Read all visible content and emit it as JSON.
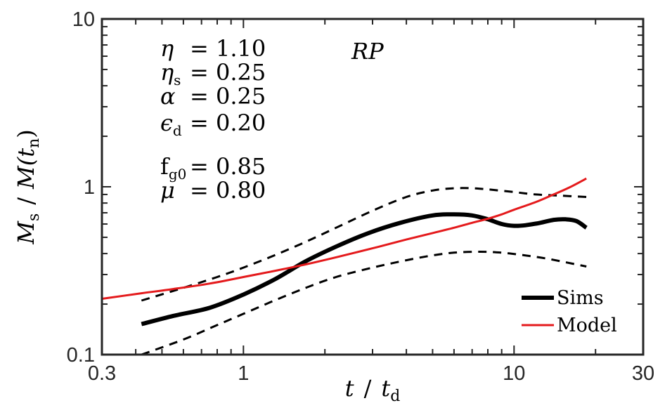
{
  "chart_data": {
    "type": "line",
    "title": "RP",
    "xscale": "log",
    "yscale": "log",
    "xlim": [
      0.3,
      30
    ],
    "ylim": [
      0.1,
      10
    ],
    "xticks": [
      0.3,
      1,
      10,
      30
    ],
    "xtick_labels": [
      "0.3",
      "1",
      "10",
      "30"
    ],
    "yticks": [
      0.1,
      1,
      10
    ],
    "ytick_labels": [
      "0.1",
      "1",
      "10"
    ],
    "xlabel": {
      "var1": "t",
      "slash": "/",
      "var2": "t",
      "sub2": "d"
    },
    "ylabel": {
      "var1": "M",
      "sub1": "s",
      "slash": "/",
      "var2": "M(t",
      "sub2": "n",
      "close": ")"
    },
    "annotations": [
      {
        "sym": "η",
        "sub": "",
        "eq": "= 1.10"
      },
      {
        "sym": "η",
        "sub": "s",
        "eq": "= 0.25"
      },
      {
        "sym": "α",
        "sub": "",
        "eq": "= 0.25"
      },
      {
        "sym": "ϵ",
        "sub": "d",
        "eq": "= 0.20"
      },
      {
        "sym": "f",
        "sub": "g0",
        "eq": "= 0.85"
      },
      {
        "sym": "μ",
        "sub": "",
        "eq": "= 0.80"
      }
    ],
    "legend": {
      "position": "bottom-right",
      "entries": [
        "Sims",
        "Model"
      ]
    },
    "series": [
      {
        "name": "Sims",
        "color": "#000000",
        "style": "solid",
        "x": [
          0.42,
          0.55,
          0.75,
          1.0,
          1.3,
          1.7,
          2.2,
          2.9,
          3.8,
          5.0,
          6.0,
          7.0,
          8.0,
          9.0,
          10.0,
          11.0,
          12.5,
          14.0,
          15.5,
          17.0,
          18.5
        ],
        "y": [
          0.152,
          0.17,
          0.19,
          0.228,
          0.28,
          0.36,
          0.44,
          0.53,
          0.61,
          0.675,
          0.685,
          0.675,
          0.64,
          0.6,
          0.585,
          0.59,
          0.61,
          0.635,
          0.64,
          0.625,
          0.57
        ]
      },
      {
        "name": "Sims upper",
        "color": "#000000",
        "style": "dashed",
        "x": [
          0.42,
          0.6,
          0.8,
          1.0,
          1.3,
          1.7,
          2.2,
          3.0,
          4.0,
          5.0,
          6.0,
          7.0,
          8.0,
          10.0,
          12.0,
          15.0,
          18.5
        ],
        "y": [
          0.21,
          0.25,
          0.29,
          0.33,
          0.39,
          0.47,
          0.57,
          0.72,
          0.87,
          0.95,
          0.98,
          0.98,
          0.965,
          0.93,
          0.9,
          0.885,
          0.87
        ]
      },
      {
        "name": "Sims lower",
        "color": "#000000",
        "style": "dashed",
        "x": [
          0.42,
          0.6,
          0.8,
          1.0,
          1.3,
          1.7,
          2.2,
          3.0,
          4.0,
          5.0,
          6.0,
          7.5,
          9.0,
          11.0,
          13.0,
          15.5,
          18.5
        ],
        "y": [
          0.1,
          0.123,
          0.15,
          0.175,
          0.21,
          0.25,
          0.29,
          0.33,
          0.365,
          0.39,
          0.405,
          0.41,
          0.405,
          0.39,
          0.375,
          0.355,
          0.335
        ]
      },
      {
        "name": "Model",
        "color": "#e41a1c",
        "style": "solid",
        "x": [
          0.3,
          0.42,
          0.55,
          0.75,
          1.0,
          1.3,
          1.7,
          2.2,
          3.0,
          4.0,
          5.0,
          6.0,
          7.0,
          8.0,
          9.0,
          10.0,
          12.0,
          14.0,
          16.0,
          18.5
        ],
        "y": [
          0.215,
          0.232,
          0.246,
          0.265,
          0.29,
          0.315,
          0.345,
          0.38,
          0.43,
          0.485,
          0.53,
          0.57,
          0.61,
          0.645,
          0.685,
          0.73,
          0.81,
          0.9,
          0.99,
          1.12
        ]
      }
    ]
  }
}
